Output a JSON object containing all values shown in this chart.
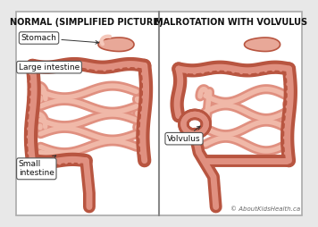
{
  "title_left": "NORMAL (SIMPLIFIED PICTURE)",
  "title_right": "MALROTATION WITH VOLVULUS",
  "bg_color": "#e8e8e8",
  "panel_bg": "#ffffff",
  "copyright": "© AboutKidsHealth.ca",
  "outer_c": "#b85540",
  "inner_c": "#e09080",
  "light_c": "#f0b8a8",
  "stomach_fill": "#e8a898",
  "stomach_edge": "#b85540",
  "label_fontsize": 6.5,
  "title_fontsize": 7.0
}
